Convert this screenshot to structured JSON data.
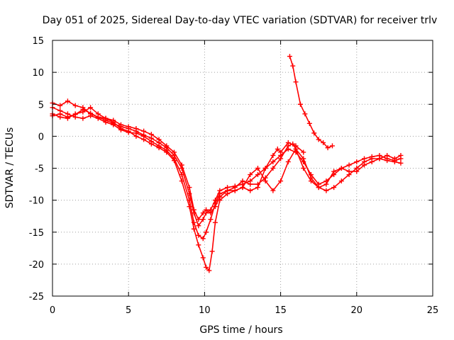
{
  "chart_data": {
    "type": "scatter",
    "title": "Day 051 of 2025, Sidereal Day-to-day VTEC variation (SDTVAR) for receiver trlv",
    "xlabel": "GPS time / hours",
    "ylabel": "SDTVAR / TECUs",
    "xlim": [
      0,
      25
    ],
    "ylim": [
      -25,
      15
    ],
    "xticks": [
      0,
      5,
      10,
      15,
      20,
      25
    ],
    "yticks": [
      -25,
      -20,
      -15,
      -10,
      -5,
      0,
      5,
      10,
      15
    ],
    "grid": true,
    "marker": "plus",
    "color": "#ff0000",
    "series": [
      {
        "values": [
          [
            0,
            3.2
          ],
          [
            0.5,
            3.5
          ],
          [
            1,
            3.0
          ],
          [
            1.5,
            3.4
          ],
          [
            2,
            4.2
          ],
          [
            2.5,
            3.6
          ],
          [
            3,
            3.0
          ],
          [
            3.5,
            2.5
          ],
          [
            4,
            2.0
          ],
          [
            4.5,
            1.5
          ],
          [
            5,
            1.2
          ],
          [
            5.5,
            0.8
          ],
          [
            6,
            0.2
          ],
          [
            6.5,
            -0.3
          ],
          [
            7,
            -1.0
          ],
          [
            7.5,
            -1.8
          ],
          [
            8,
            -3.0
          ],
          [
            8.5,
            -5.0
          ],
          [
            9,
            -9.0
          ],
          [
            9.3,
            -12.0
          ],
          [
            9.6,
            -14.0
          ],
          [
            9.9,
            -13.0
          ],
          [
            10.1,
            -12.0
          ],
          [
            10.4,
            -11.5
          ],
          [
            10.7,
            -10.0
          ],
          [
            11,
            -8.5
          ],
          [
            11.5,
            -8.0
          ],
          [
            12,
            -7.8
          ],
          [
            12.5,
            -7.5
          ],
          [
            13,
            -7.0
          ],
          [
            13.5,
            -6.0
          ],
          [
            14,
            -5.0
          ],
          [
            14.5,
            -4.0
          ],
          [
            15,
            -3.0
          ],
          [
            15.5,
            -2.0
          ],
          [
            16,
            -2.5
          ],
          [
            16.5,
            -4.0
          ],
          [
            17,
            -6.0
          ],
          [
            17.5,
            -7.5
          ],
          [
            18,
            -7.0
          ],
          [
            18.5,
            -6.0
          ],
          [
            19,
            -5.0
          ],
          [
            19.5,
            -4.5
          ],
          [
            20,
            -4.0
          ],
          [
            20.5,
            -3.5
          ],
          [
            21,
            -3.2
          ],
          [
            21.5,
            -3.0
          ],
          [
            22,
            -3.5
          ],
          [
            22.5,
            -3.8
          ],
          [
            22.9,
            -3.5
          ]
        ]
      },
      {
        "values": [
          [
            0,
            4.5
          ],
          [
            0.5,
            4.0
          ],
          [
            1,
            3.5
          ],
          [
            1.5,
            3.0
          ],
          [
            2,
            2.8
          ],
          [
            2.5,
            3.2
          ],
          [
            3,
            2.8
          ],
          [
            3.5,
            2.2
          ],
          [
            4,
            1.8
          ],
          [
            4.5,
            1.0
          ],
          [
            5,
            0.6
          ],
          [
            5.5,
            0.5
          ],
          [
            6,
            0.0
          ],
          [
            6.5,
            -0.8
          ],
          [
            7,
            -1.5
          ],
          [
            7.5,
            -2.2
          ],
          [
            8,
            -3.5
          ],
          [
            8.5,
            -6.0
          ],
          [
            9,
            -10.0
          ],
          [
            9.3,
            -13.5
          ],
          [
            9.6,
            -15.5
          ],
          [
            9.9,
            -16.0
          ],
          [
            10.1,
            -15.0
          ],
          [
            10.4,
            -13.0
          ],
          [
            10.7,
            -10.5
          ],
          [
            11,
            -9.0
          ],
          [
            11.5,
            -8.5
          ],
          [
            12,
            -8.0
          ],
          [
            12.5,
            -7.0
          ],
          [
            13,
            -7.5
          ],
          [
            13.5,
            -7.5
          ],
          [
            14,
            -6.5
          ],
          [
            14.5,
            -5.0
          ],
          [
            15,
            -3.5
          ],
          [
            15.5,
            -1.5
          ],
          [
            15.8,
            -1.2
          ],
          [
            16,
            -2.0
          ],
          [
            16.5,
            -5.0
          ],
          [
            17,
            -7.0
          ],
          [
            17.5,
            -8.0
          ],
          [
            18,
            -8.5
          ],
          [
            18.5,
            -8.0
          ],
          [
            19,
            -7.0
          ],
          [
            19.5,
            -6.0
          ],
          [
            20,
            -5.0
          ],
          [
            20.5,
            -4.0
          ],
          [
            21,
            -3.5
          ],
          [
            21.5,
            -3.5
          ],
          [
            22,
            -3.8
          ],
          [
            22.5,
            -4.0
          ],
          [
            22.9,
            -4.2
          ]
        ]
      },
      {
        "values": [
          [
            0,
            5.2
          ],
          [
            0.5,
            4.8
          ],
          [
            1,
            5.5
          ],
          [
            1.5,
            4.8
          ],
          [
            2,
            4.5
          ],
          [
            2.5,
            3.5
          ],
          [
            3,
            3.0
          ],
          [
            3.5,
            2.8
          ],
          [
            4,
            2.5
          ],
          [
            4.5,
            1.8
          ],
          [
            5,
            1.5
          ],
          [
            5.5,
            1.2
          ],
          [
            6,
            0.8
          ],
          [
            6.5,
            0.3
          ],
          [
            7,
            -0.5
          ],
          [
            7.5,
            -1.5
          ],
          [
            8,
            -2.5
          ],
          [
            8.5,
            -4.5
          ],
          [
            9,
            -8.0
          ],
          [
            9.3,
            -11.5
          ],
          [
            9.6,
            -13.0
          ],
          [
            9.9,
            -12.0
          ],
          [
            10.1,
            -11.5
          ],
          [
            10.4,
            -12.0
          ],
          [
            10.7,
            -11.0
          ],
          [
            11,
            -9.5
          ],
          [
            11.5,
            -8.5
          ],
          [
            12,
            -8.5
          ],
          [
            12.5,
            -8.0
          ],
          [
            13,
            -6.0
          ],
          [
            13.5,
            -5.0
          ],
          [
            14,
            -7.0
          ],
          [
            14.5,
            -8.5
          ],
          [
            15,
            -7.0
          ],
          [
            15.5,
            -4.0
          ],
          [
            16,
            -2.0
          ],
          [
            16.5,
            -3.5
          ],
          [
            17,
            -6.5
          ],
          [
            17.5,
            -8.0
          ],
          [
            18,
            -7.5
          ],
          [
            18.5,
            -5.5
          ],
          [
            19,
            -5.0
          ],
          [
            19.5,
            -5.5
          ],
          [
            20,
            -5.5
          ],
          [
            20.5,
            -4.5
          ],
          [
            21,
            -4.0
          ],
          [
            21.5,
            -3.5
          ],
          [
            22,
            -3.0
          ],
          [
            22.5,
            -3.5
          ],
          [
            22.9,
            -3.0
          ]
        ]
      },
      {
        "values": [
          [
            0,
            3.5
          ],
          [
            0.5,
            3.0
          ],
          [
            1,
            2.8
          ],
          [
            1.5,
            3.5
          ],
          [
            2,
            3.8
          ],
          [
            2.5,
            4.5
          ],
          [
            3,
            3.5
          ],
          [
            3.5,
            2.8
          ],
          [
            4,
            2.2
          ],
          [
            4.5,
            1.2
          ],
          [
            5,
            0.8
          ],
          [
            5.5,
            0.0
          ],
          [
            6,
            -0.5
          ],
          [
            6.5,
            -1.2
          ],
          [
            7,
            -1.8
          ],
          [
            7.5,
            -2.5
          ],
          [
            8,
            -3.8
          ],
          [
            8.5,
            -7.0
          ],
          [
            9,
            -11.0
          ],
          [
            9.3,
            -14.5
          ],
          [
            9.6,
            -17.0
          ],
          [
            9.9,
            -19.0
          ],
          [
            10.1,
            -20.5
          ],
          [
            10.3,
            -21.0
          ],
          [
            10.5,
            -18.0
          ],
          [
            10.7,
            -13.5
          ],
          [
            11,
            -10.0
          ],
          [
            11.5,
            -9.0
          ],
          [
            12,
            -8.5
          ],
          [
            12.5,
            -8.0
          ],
          [
            13,
            -8.5
          ],
          [
            13.5,
            -8.0
          ],
          [
            14,
            -5.0
          ],
          [
            14.5,
            -3.0
          ],
          [
            14.8,
            -2.0
          ],
          [
            15,
            -2.5
          ],
          [
            15.5,
            -1.0
          ],
          [
            16,
            -1.5
          ],
          [
            16.5,
            -2.5
          ]
        ]
      },
      {
        "values": [
          [
            15.6,
            12.5
          ],
          [
            15.8,
            11.0
          ],
          [
            16,
            8.5
          ],
          [
            16.3,
            5.0
          ],
          [
            16.6,
            3.5
          ],
          [
            16.9,
            2.0
          ],
          [
            17.2,
            0.5
          ],
          [
            17.5,
            -0.5
          ],
          [
            17.8,
            -1.0
          ],
          [
            18.1,
            -1.8
          ],
          [
            18.4,
            -1.5
          ]
        ]
      }
    ]
  }
}
